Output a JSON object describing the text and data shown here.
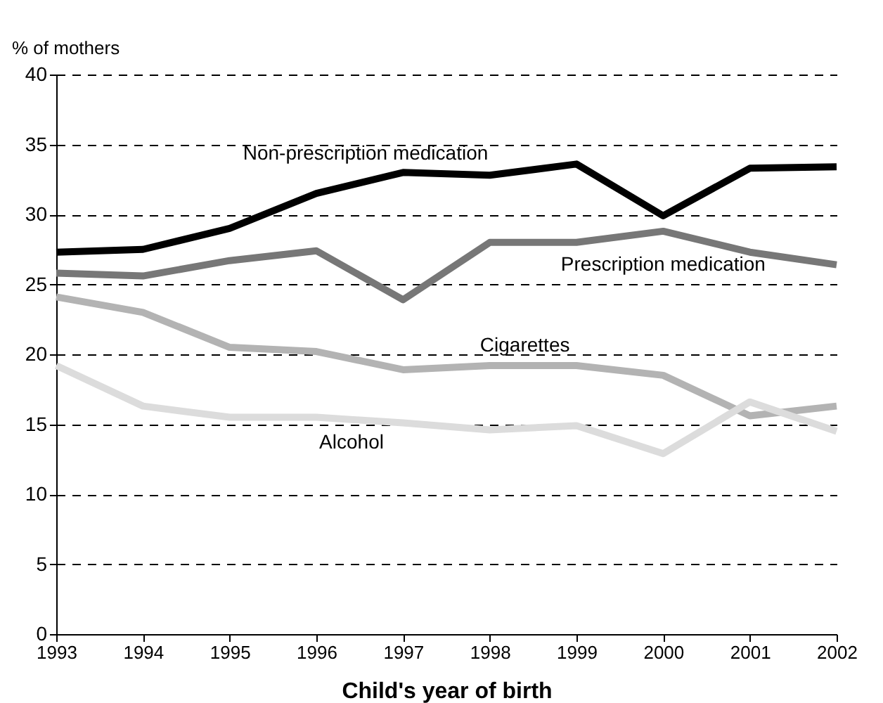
{
  "chart_data": {
    "type": "line",
    "xlabel": "Child's year of birth",
    "ylabel": "% of mothers",
    "categories": [
      "1993",
      "1994",
      "1995",
      "1996",
      "1997",
      "1998",
      "1999",
      "2000",
      "2001",
      "2002"
    ],
    "series": [
      {
        "name": "Non-prescription medication",
        "color": "#000000",
        "values": [
          27.3,
          27.5,
          29,
          31.5,
          33,
          32.8,
          33.6,
          29.9,
          33.3,
          33.4
        ]
      },
      {
        "name": "Prescription medication",
        "color": "#777777",
        "values": [
          25.8,
          25.6,
          26.7,
          27.4,
          23.9,
          28,
          28,
          28.8,
          27.3,
          26.4
        ]
      },
      {
        "name": "Cigarettes",
        "color": "#b3b3b3",
        "values": [
          24.1,
          23,
          20.5,
          20.2,
          18.9,
          19.2,
          19.2,
          18.5,
          15.6,
          16.3
        ]
      },
      {
        "name": "Alcohol",
        "color": "#dcdcdc",
        "values": [
          19.2,
          16.3,
          15.5,
          15.5,
          15.1,
          14.6,
          14.9,
          12.9,
          16.6,
          14.5
        ]
      }
    ],
    "ylim": [
      0,
      40
    ],
    "yticks": [
      0,
      5,
      10,
      15,
      20,
      25,
      30,
      35,
      40
    ],
    "grid": "y",
    "legend": false,
    "marker": "none",
    "line_style": "solid"
  }
}
